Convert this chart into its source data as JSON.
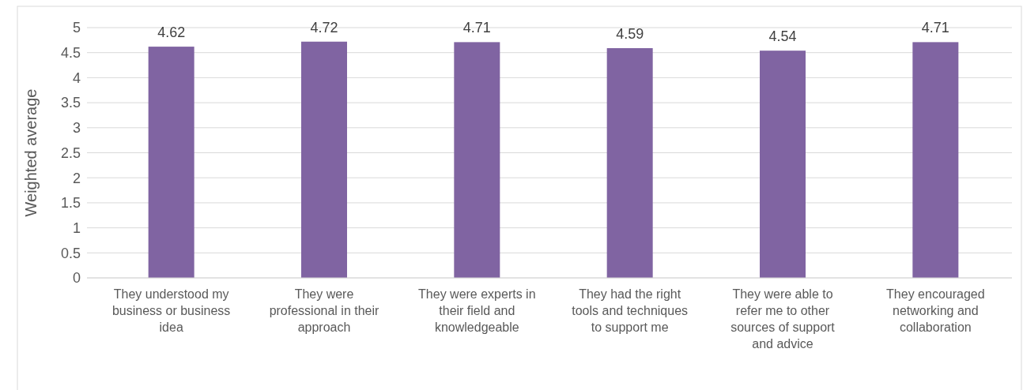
{
  "chart_data": {
    "type": "bar",
    "ylabel": "Weighted average",
    "categories": [
      "They understood my business or business idea",
      "They were professional in their approach",
      "They were experts in their field and knowledgeable",
      "They had the right tools and techniques to support me",
      "They were able to refer me to other sources of support and advice",
      "They encouraged networking and collaboration"
    ],
    "values": [
      4.62,
      4.72,
      4.71,
      4.59,
      4.54,
      4.71
    ],
    "color": "#8064a2",
    "ylim": [
      0,
      5
    ],
    "yticks": [
      0,
      0.5,
      1,
      1.5,
      2,
      2.5,
      3,
      3.5,
      4,
      4.5,
      5
    ],
    "grid": "y",
    "data_labels": true
  }
}
